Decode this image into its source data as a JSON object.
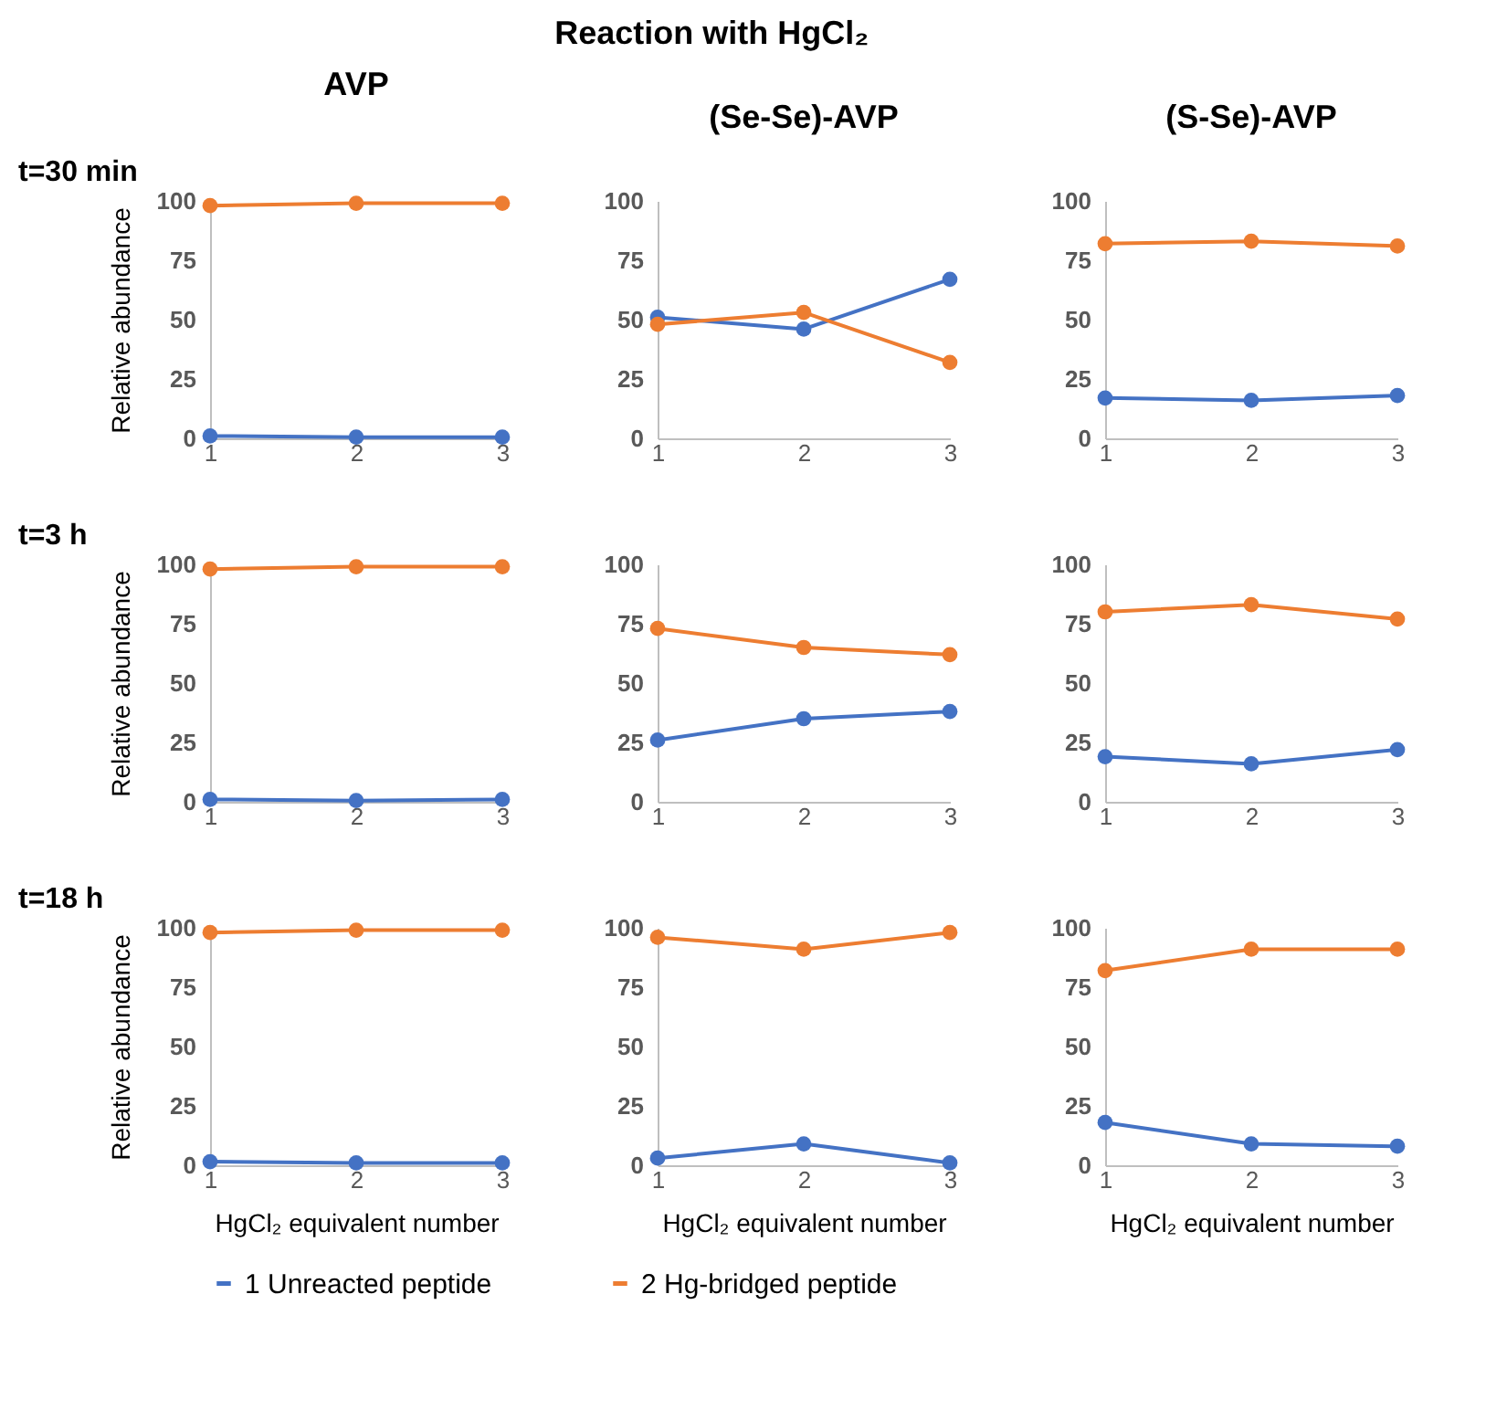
{
  "chart_data": [
    {
      "type": "line",
      "title": "AVP",
      "ylabel": "Relative abundance",
      "annotations": [
        "Reaction with HgCl₂",
        "t=30 min"
      ],
      "categories": [
        "1",
        "2",
        "3"
      ],
      "ylim": [
        0,
        100
      ],
      "yticks": [
        0,
        25,
        50,
        75,
        100
      ],
      "marker": "circle",
      "legend": "bottom",
      "series": [
        {
          "name": "1 Unreacted peptide",
          "color": "#4472c4",
          "values": [
            1,
            0.5,
            0.5
          ]
        },
        {
          "name": "2 Hg-bridged peptide",
          "color": "#ed7d31",
          "values": [
            98,
            99,
            99
          ]
        }
      ]
    },
    {
      "type": "line",
      "title": "(Se-Se)-AVP",
      "categories": [
        "1",
        "2",
        "3"
      ],
      "ylim": [
        0,
        100
      ],
      "yticks": [
        0,
        25,
        50,
        75,
        100
      ],
      "marker": "circle",
      "legend": "bottom",
      "series": [
        {
          "name": "1 Unreacted peptide",
          "color": "#4472c4",
          "values": [
            51,
            46,
            67
          ]
        },
        {
          "name": "2 Hg-bridged peptide",
          "color": "#ed7d31",
          "values": [
            48,
            53,
            32
          ]
        }
      ]
    },
    {
      "type": "line",
      "title": "(S-Se)-AVP",
      "categories": [
        "1",
        "2",
        "3"
      ],
      "ylim": [
        0,
        100
      ],
      "yticks": [
        0,
        25,
        50,
        75,
        100
      ],
      "marker": "circle",
      "legend": "bottom",
      "series": [
        {
          "name": "1 Unreacted peptide",
          "color": "#4472c4",
          "values": [
            17,
            16,
            18
          ]
        },
        {
          "name": "2 Hg-bridged peptide",
          "color": "#ed7d31",
          "values": [
            82,
            83,
            81
          ]
        }
      ]
    },
    {
      "type": "line",
      "ylabel": "Relative abundance",
      "annotations": [
        "t=3 h"
      ],
      "categories": [
        "1",
        "2",
        "3"
      ],
      "ylim": [
        0,
        100
      ],
      "yticks": [
        0,
        25,
        50,
        75,
        100
      ],
      "marker": "circle",
      "legend": "bottom",
      "series": [
        {
          "name": "1 Unreacted peptide",
          "color": "#4472c4",
          "values": [
            1,
            0.5,
            1
          ]
        },
        {
          "name": "2 Hg-bridged peptide",
          "color": "#ed7d31",
          "values": [
            98,
            99,
            99
          ]
        }
      ]
    },
    {
      "type": "line",
      "categories": [
        "1",
        "2",
        "3"
      ],
      "ylim": [
        0,
        100
      ],
      "yticks": [
        0,
        25,
        50,
        75,
        100
      ],
      "marker": "circle",
      "legend": "bottom",
      "series": [
        {
          "name": "1 Unreacted peptide",
          "color": "#4472c4",
          "values": [
            26,
            35,
            38
          ]
        },
        {
          "name": "2 Hg-bridged peptide",
          "color": "#ed7d31",
          "values": [
            73,
            65,
            62
          ]
        }
      ]
    },
    {
      "type": "line",
      "categories": [
        "1",
        "2",
        "3"
      ],
      "ylim": [
        0,
        100
      ],
      "yticks": [
        0,
        25,
        50,
        75,
        100
      ],
      "marker": "circle",
      "legend": "bottom",
      "series": [
        {
          "name": "1 Unreacted peptide",
          "color": "#4472c4",
          "values": [
            19,
            16,
            22
          ]
        },
        {
          "name": "2 Hg-bridged peptide",
          "color": "#ed7d31",
          "values": [
            80,
            83,
            77
          ]
        }
      ]
    },
    {
      "type": "line",
      "ylabel": "Relative abundance",
      "xlabel": "HgCl₂ equivalent number",
      "annotations": [
        "t=18 h"
      ],
      "categories": [
        "1",
        "2",
        "3"
      ],
      "ylim": [
        0,
        100
      ],
      "yticks": [
        0,
        25,
        50,
        75,
        100
      ],
      "marker": "circle",
      "legend": "bottom",
      "series": [
        {
          "name": "1 Unreacted peptide",
          "color": "#4472c4",
          "values": [
            1.5,
            1,
            1
          ]
        },
        {
          "name": "2 Hg-bridged peptide",
          "color": "#ed7d31",
          "values": [
            98,
            99,
            99
          ]
        }
      ]
    },
    {
      "type": "line",
      "xlabel": "HgCl₂ equivalent number",
      "categories": [
        "1",
        "2",
        "3"
      ],
      "ylim": [
        0,
        100
      ],
      "yticks": [
        0,
        25,
        50,
        75,
        100
      ],
      "marker": "circle",
      "legend": "bottom",
      "series": [
        {
          "name": "1 Unreacted peptide",
          "color": "#4472c4",
          "values": [
            3,
            9,
            1
          ]
        },
        {
          "name": "2 Hg-bridged peptide",
          "color": "#ed7d31",
          "values": [
            96,
            91,
            98
          ]
        }
      ]
    },
    {
      "type": "line",
      "xlabel": "HgCl₂ equivalent number",
      "categories": [
        "1",
        "2",
        "3"
      ],
      "ylim": [
        0,
        100
      ],
      "yticks": [
        0,
        25,
        50,
        75,
        100
      ],
      "marker": "circle",
      "legend": "bottom",
      "series": [
        {
          "name": "1 Unreacted peptide",
          "color": "#4472c4",
          "values": [
            18,
            9,
            8
          ]
        },
        {
          "name": "2 Hg-bridged peptide",
          "color": "#ed7d31",
          "values": [
            82,
            91,
            91
          ]
        }
      ]
    }
  ]
}
